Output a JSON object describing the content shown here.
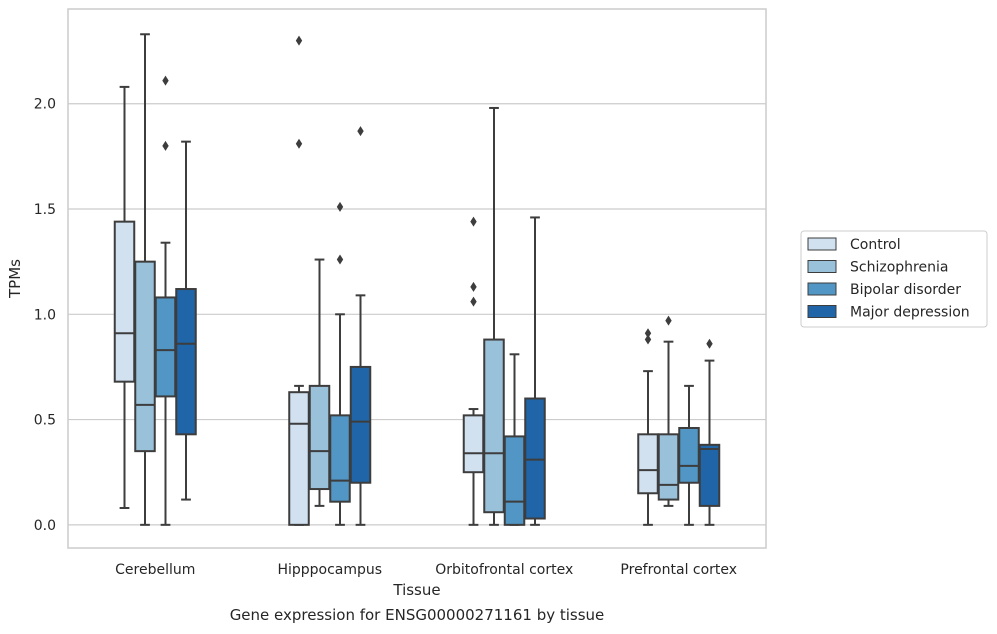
{
  "caption": "Gene expression for ENSG00000271161 by tissue",
  "chart_data": {
    "type": "box",
    "xlabel": "Tissue",
    "ylabel": "TPMs",
    "ylim": [
      -0.11,
      2.45
    ],
    "yticks": [
      "0.0",
      "0.5",
      "1.0",
      "1.5",
      "2.0"
    ],
    "ytick_values": [
      0.0,
      0.5,
      1.0,
      1.5,
      2.0
    ],
    "grid": "horizontal",
    "legend_position": "right",
    "categories": [
      "Cerebellum",
      "Hipppocampus",
      "Orbitofrontal cortex",
      "Prefrontal cortex"
    ],
    "series": [
      {
        "name": "Control",
        "color": "#d1e1f0",
        "boxes": [
          {
            "whislo": 0.08,
            "q1": 0.68,
            "med": 0.91,
            "q3": 1.44,
            "whishi": 2.08,
            "fliers": []
          },
          {
            "whislo": 0.0,
            "q1": 0.0,
            "med": 0.48,
            "q3": 0.63,
            "whishi": 0.66,
            "fliers": [
              1.81,
              2.3
            ]
          },
          {
            "whislo": 0.0,
            "q1": 0.25,
            "med": 0.34,
            "q3": 0.52,
            "whishi": 0.55,
            "fliers": [
              1.06,
              1.13,
              1.44
            ]
          },
          {
            "whislo": 0.0,
            "q1": 0.15,
            "med": 0.26,
            "q3": 0.43,
            "whishi": 0.73,
            "fliers": [
              0.88,
              0.91
            ]
          }
        ]
      },
      {
        "name": "Schizophrenia",
        "color": "#9ac1da",
        "boxes": [
          {
            "whislo": 0.0,
            "q1": 0.35,
            "med": 0.57,
            "q3": 1.25,
            "whishi": 2.33,
            "fliers": []
          },
          {
            "whislo": 0.09,
            "q1": 0.17,
            "med": 0.35,
            "q3": 0.66,
            "whishi": 1.26,
            "fliers": []
          },
          {
            "whislo": 0.0,
            "q1": 0.06,
            "med": 0.34,
            "q3": 0.88,
            "whishi": 1.98,
            "fliers": []
          },
          {
            "whislo": 0.09,
            "q1": 0.12,
            "med": 0.19,
            "q3": 0.43,
            "whishi": 0.87,
            "fliers": [
              0.97
            ]
          }
        ]
      },
      {
        "name": "Bipolar disorder",
        "color": "#5196c4",
        "boxes": [
          {
            "whislo": 0.0,
            "q1": 0.61,
            "med": 0.83,
            "q3": 1.08,
            "whishi": 1.34,
            "fliers": [
              1.8,
              2.11
            ]
          },
          {
            "whislo": 0.0,
            "q1": 0.11,
            "med": 0.21,
            "q3": 0.52,
            "whishi": 1.0,
            "fliers": [
              1.26,
              1.51
            ]
          },
          {
            "whislo": 0.0,
            "q1": 0.0,
            "med": 0.11,
            "q3": 0.42,
            "whishi": 0.81,
            "fliers": []
          },
          {
            "whislo": 0.0,
            "q1": 0.2,
            "med": 0.28,
            "q3": 0.46,
            "whishi": 0.66,
            "fliers": []
          }
        ]
      },
      {
        "name": "Major depression",
        "color": "#1f65a8",
        "boxes": [
          {
            "whislo": 0.12,
            "q1": 0.43,
            "med": 0.86,
            "q3": 1.12,
            "whishi": 1.82,
            "fliers": []
          },
          {
            "whislo": 0.0,
            "q1": 0.2,
            "med": 0.49,
            "q3": 0.75,
            "whishi": 1.09,
            "fliers": [
              1.87
            ]
          },
          {
            "whislo": 0.0,
            "q1": 0.03,
            "med": 0.31,
            "q3": 0.6,
            "whishi": 1.46,
            "fliers": []
          },
          {
            "whislo": 0.0,
            "q1": 0.09,
            "med": 0.36,
            "q3": 0.38,
            "whishi": 0.78,
            "fliers": [
              0.86
            ]
          }
        ]
      }
    ],
    "line_color": "#3d3d3d",
    "grid_color": "#cccccc",
    "frame_color": "#cccccc"
  }
}
